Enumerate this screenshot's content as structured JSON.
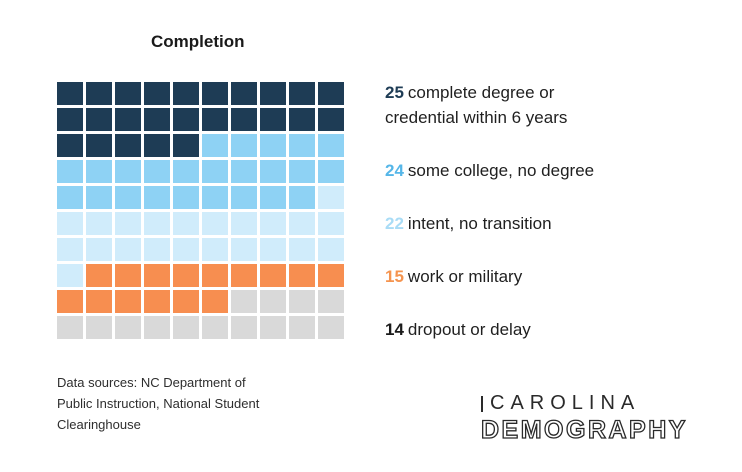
{
  "title": "Completion",
  "chart_data": {
    "type": "waffle",
    "title": "Completion",
    "grid": {
      "rows": 10,
      "cols": 10,
      "fill_order": "left-to-right, top-to-bottom"
    },
    "total": 100,
    "unit": "1 square = 1 percent of students",
    "series": [
      {
        "name": "complete degree or credential within 6 years",
        "value": 25,
        "color": "#1e3c55"
      },
      {
        "name": "some college, no degree",
        "value": 24,
        "color": "#8ed2f4"
      },
      {
        "name": "intent, no transition",
        "value": 22,
        "color": "#d0ecfb"
      },
      {
        "name": "work or military",
        "value": 15,
        "color": "#f78e50"
      },
      {
        "name": "dropout or delay",
        "value": 14,
        "color": "#d9d9d9"
      }
    ]
  },
  "legend": {
    "items": [
      {
        "value": "25",
        "label": "complete degree or credential within 6 years",
        "number_color": "#1e3c55"
      },
      {
        "value": "24",
        "label": "some college, no degree",
        "number_color": "#55b6e8"
      },
      {
        "value": "22",
        "label": "intent, no transition",
        "number_color": "#a9dcf6"
      },
      {
        "value": "15",
        "label": "work or military",
        "number_color": "#f5944f"
      },
      {
        "value": "14",
        "label": "dropout or delay",
        "number_color": "#1a1a1a"
      }
    ]
  },
  "footer": {
    "source_line1": "Data sources: NC Department of",
    "source_line2": "Public Instruction, National Student",
    "source_line3": "Clearinghouse"
  },
  "logo": {
    "line1": "CAROLINA",
    "line2": "DEMOGRAPHY"
  }
}
